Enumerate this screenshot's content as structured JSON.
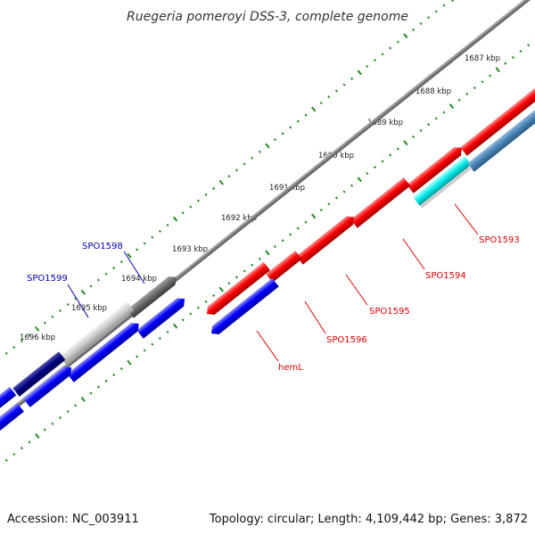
{
  "title": "Ruegeria pomeroyi DSS-3, complete genome",
  "footer": {
    "accession": "Accession: NC_003911",
    "summary": "Topology: circular; Length: 4,109,442 bp; Genes: 3,872"
  },
  "ticks": [
    {
      "label": "1687 kbp"
    },
    {
      "label": "1688 kbp"
    },
    {
      "label": "1689 kbp"
    },
    {
      "label": "1690 kbp"
    },
    {
      "label": "1691 kbp"
    },
    {
      "label": "1692 kbp"
    },
    {
      "label": "1693 kbp"
    },
    {
      "label": "1694 kbp"
    },
    {
      "label": "1695 kbp"
    },
    {
      "label": "1696 kbp"
    }
  ],
  "gene_labels": [
    {
      "name": "SPO1593",
      "color": "#dd0000"
    },
    {
      "name": "SPO1594",
      "color": "#dd0000"
    },
    {
      "name": "SPO1595",
      "color": "#dd0000"
    },
    {
      "name": "SPO1596",
      "color": "#dd0000"
    },
    {
      "name": "hemL",
      "color": "#dd0000"
    },
    {
      "name": "SPO1598",
      "color": "#0000aa"
    },
    {
      "name": "SPO1599",
      "color": "#0000aa"
    }
  ],
  "colors": {
    "forward_gene": "#ff0000",
    "reverse_gene": "#0000ff",
    "backbone": "#808080",
    "tick_dots": "#228b22",
    "gene_cyan": "#00e0e0",
    "gene_steel": "#4682b4",
    "gene_gray": "#696969",
    "gene_light": "#cccccc",
    "gene_navy": "#000080"
  }
}
